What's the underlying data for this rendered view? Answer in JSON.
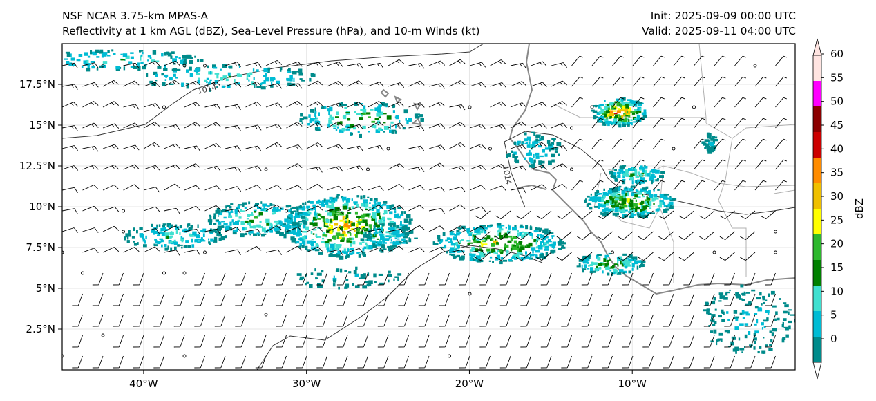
{
  "header": {
    "model": "NSF NCAR 3.75-km MPAS-A",
    "subtitle": "Reflectivity at 1 km AGL (dBZ), Sea-Level Pressure (hPa), and 10-m Winds (kt)",
    "init": "Init: 2025-09-09 00:00 UTC",
    "valid": "Valid: 2025-09-11 04:00 UTC"
  },
  "map": {
    "lon_range": [
      -45,
      0
    ],
    "lat_range": [
      0,
      20
    ],
    "x_ticks": [
      {
        "lon": -40,
        "label": "40°W"
      },
      {
        "lon": -30,
        "label": "30°W"
      },
      {
        "lon": -20,
        "label": "20°W"
      },
      {
        "lon": -10,
        "label": "10°W"
      }
    ],
    "y_ticks": [
      {
        "lat": 2.5,
        "label": "2.5°N"
      },
      {
        "lat": 5,
        "label": "5°N"
      },
      {
        "lat": 7.5,
        "label": "7.5°N"
      },
      {
        "lat": 10,
        "label": "10°N"
      },
      {
        "lat": 12.5,
        "label": "12.5°N"
      },
      {
        "lat": 15,
        "label": "15°N"
      },
      {
        "lat": 17.5,
        "label": "17.5°N"
      }
    ],
    "isobar_labels": [
      {
        "text": "1014",
        "lon": -38.2,
        "lat": 17.3
      },
      {
        "text": "1014",
        "lon": -18.8,
        "lat": 11.8
      }
    ],
    "colors": {
      "coast": "#888888",
      "border": "#b0b0b0",
      "isobar": "#333333",
      "barb": "#000000"
    }
  },
  "colorbar": {
    "label": "dBZ",
    "ticks": [
      "0",
      "5",
      "10",
      "15",
      "20",
      "25",
      "30",
      "35",
      "40",
      "45",
      "50",
      "55",
      "60"
    ],
    "colors": [
      "#ffffff",
      "#008b8b",
      "#00bcd4",
      "#40e0d0",
      "#008000",
      "#2db82d",
      "#ffff00",
      "#f0c000",
      "#ff8c00",
      "#cc0000",
      "#8b0000",
      "#ff00ff",
      "#ffe4e1"
    ]
  }
}
